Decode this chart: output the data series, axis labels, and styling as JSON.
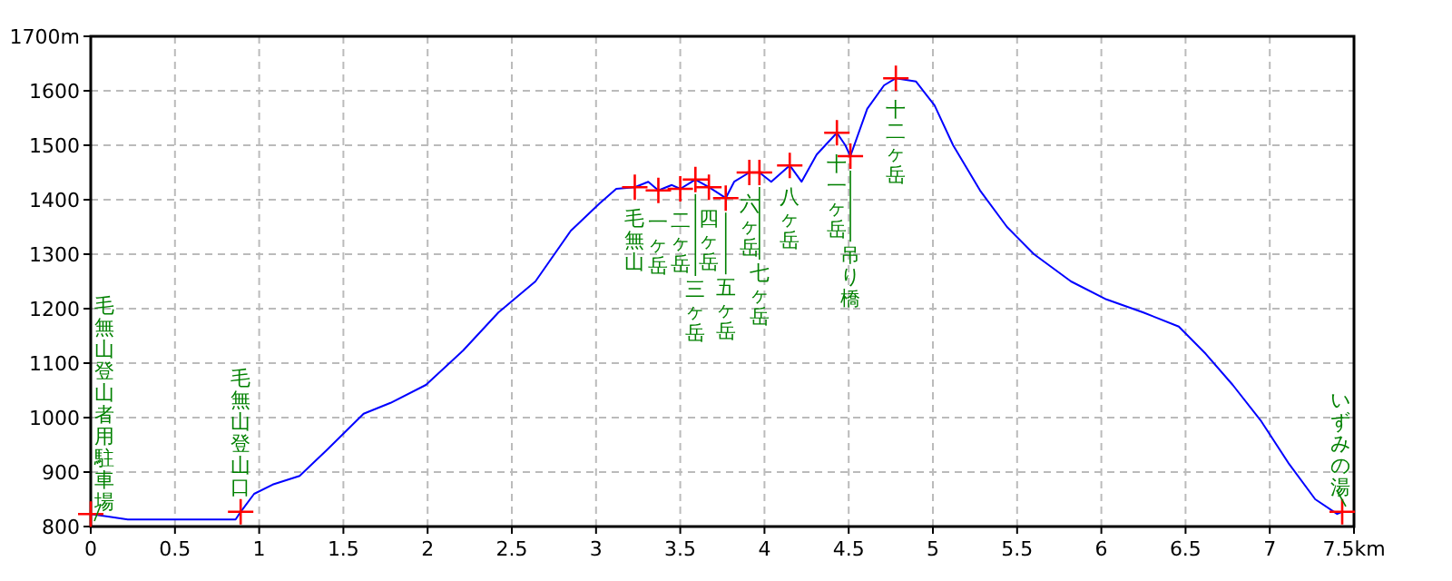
{
  "chart_data": {
    "type": "line",
    "xlim": [
      0,
      7.5
    ],
    "ylim": [
      800,
      1700
    ],
    "xticks": [
      0,
      0.5,
      1,
      1.5,
      2,
      2.5,
      3,
      3.5,
      4,
      4.5,
      5,
      5.5,
      6,
      6.5,
      7,
      {
        "value": 7.5,
        "label": "7.5km"
      }
    ],
    "yticks": [
      800,
      900,
      1000,
      1100,
      1200,
      1300,
      1400,
      1500,
      1600,
      {
        "value": 1700,
        "label": "1700m"
      }
    ],
    "grid": true,
    "series": [
      {
        "type": "line",
        "color": "#0000ff",
        "x": [
          0,
          0.13,
          0.22,
          0.86,
          0.89,
          0.97,
          1.08,
          1.24,
          1.4,
          1.62,
          1.78,
          1.99,
          2.21,
          2.42,
          2.64,
          2.85,
          3.02,
          3.12,
          3.23,
          3.31,
          3.37,
          3.45,
          3.5,
          3.59,
          3.67,
          3.77,
          3.82,
          3.91,
          3.97,
          4.04,
          4.15,
          4.22,
          4.31,
          4.43,
          4.48,
          4.51,
          4.61,
          4.71,
          4.78,
          4.9,
          5.01,
          5.12,
          5.28,
          5.44,
          5.6,
          5.82,
          6.03,
          6.25,
          6.46,
          6.62,
          6.78,
          6.95,
          7.11,
          7.27,
          7.4,
          7.43
        ],
        "values": [
          823,
          817,
          813,
          813,
          827,
          860,
          877,
          893,
          940,
          1007,
          1027,
          1060,
          1123,
          1193,
          1250,
          1343,
          1393,
          1420,
          1423,
          1433,
          1417,
          1427,
          1420,
          1437,
          1423,
          1403,
          1433,
          1450,
          1450,
          1433,
          1463,
          1433,
          1483,
          1523,
          1500,
          1480,
          1567,
          1610,
          1623,
          1617,
          1573,
          1500,
          1417,
          1350,
          1300,
          1250,
          1217,
          1193,
          1167,
          1117,
          1060,
          993,
          917,
          850,
          823,
          827
        ]
      },
      {
        "type": "scatter",
        "marker": "cross",
        "color": "#ff0000",
        "x": [
          0,
          0.89,
          3.23,
          3.37,
          3.5,
          3.59,
          3.67,
          3.77,
          3.91,
          3.97,
          4.15,
          4.43,
          4.51,
          4.78,
          7.43
        ],
        "values": [
          823,
          827,
          1423,
          1417,
          1420,
          1437,
          1423,
          1403,
          1450,
          1450,
          1463,
          1523,
          1480,
          1623,
          827
        ]
      }
    ],
    "annotations": [
      "毛無山登山者用駐車場",
      {
        "text": "毛無山登山口",
        "x": 0.89,
        "y": 827
      },
      {
        "text": "毛無山",
        "x": 3.23,
        "y": 1423
      },
      {
        "text": "一ヶ岳",
        "x": 3.37,
        "y": 1417
      },
      {
        "text": "二ヶ岳",
        "x": 3.5,
        "y": 1420
      },
      {
        "text": "三ヶ岳",
        "x": 3.59,
        "y": 1437
      },
      {
        "text": "四ヶ岳",
        "x": 3.67,
        "y": 1423
      },
      {
        "text": "五ヶ岳",
        "x": 3.77,
        "y": 1403
      },
      {
        "text": "六ヶ岳",
        "x": 3.91,
        "y": 1450
      },
      {
        "text": "七ヶ岳",
        "x": 3.97,
        "y": 1450
      },
      {
        "text": "八ヶ岳",
        "x": 4.15,
        "y": 1463
      },
      {
        "text": "十一ヶ岳",
        "x": 4.43,
        "y": 1523
      },
      {
        "text": "吊り橋",
        "x": 4.51,
        "y": 1480
      },
      {
        "text": "十二ヶ岳",
        "x": 4.78,
        "y": 1623
      },
      {
        "text": "いずみの湯",
        "x": 7.43,
        "y": 827
      }
    ]
  }
}
